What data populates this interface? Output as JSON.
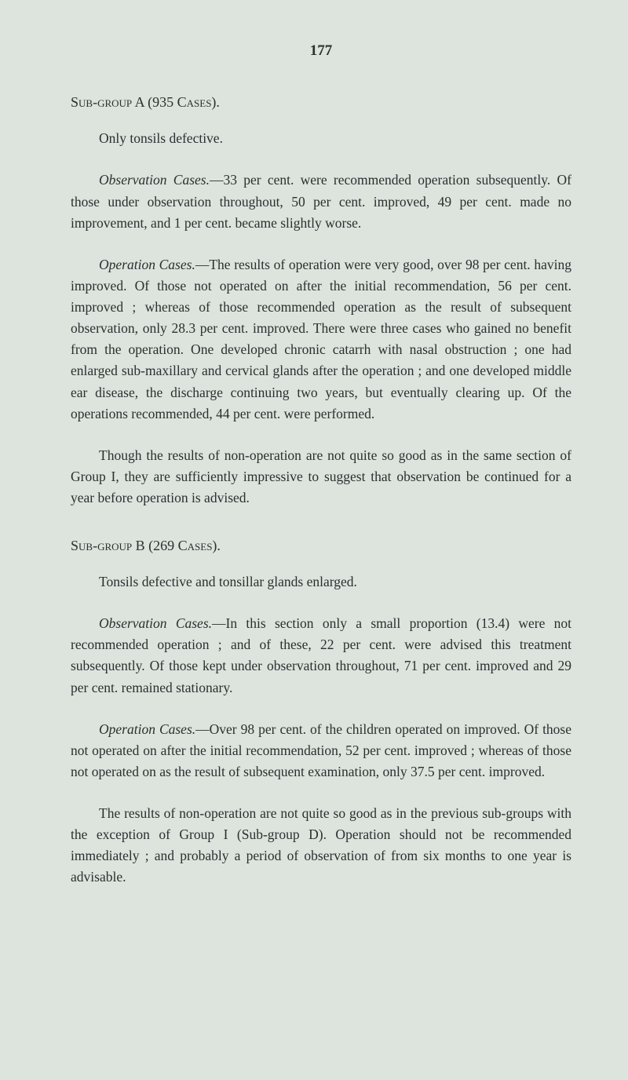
{
  "page_number": "177",
  "group_a": {
    "heading": "Sub-group A (935 Cases).",
    "sub_line": "Only tonsils defective.",
    "para1_runin": "Observation Cases.",
    "para1_rest": "—33 per cent. were recommended operation subsequently. Of those under observation throughout, 50 per cent. improved, 49 per cent. made no improvement, and 1 per cent. became slightly worse.",
    "para2_runin": "Operation Cases.",
    "para2_rest": "—The results of operation were very good, over 98 per cent. having improved. Of those not operated on after the initial recommendation, 56 per cent. improved ; whereas of those recommended operation as the result of subsequent observation, only 28.3 per cent. improved. There were three cases who gained no benefit from the operation. One developed chronic catarrh with nasal obstruction ; one had enlarged sub-maxillary and cervical glands after the operation ; and one developed middle ear disease, the discharge continuing two years, but eventually clearing up. Of the operations recommended, 44 per cent. were performed.",
    "para3": "Though the results of non-operation are not quite so good as in the same section of Group I, they are sufficiently impressive to suggest that observation be continued for a year before operation is advised."
  },
  "group_b": {
    "heading": "Sub-group B (269 Cases).",
    "sub_line": "Tonsils defective and tonsillar glands enlarged.",
    "para1_runin": "Observation Cases.",
    "para1_rest": "—In this section only a small proportion (13.4) were not recommended operation ; and of these, 22 per cent. were advised this treatment subsequently. Of those kept under observation throughout, 71 per cent. improved and 29 per cent. remained stationary.",
    "para2_runin": "Operation Cases.",
    "para2_rest": "—Over 98 per cent. of the children operated on improved. Of those not operated on after the initial recommendation, 52 per cent. improved ; whereas of those not operated on as the result of subsequent examination, only 37.5 per cent. improved.",
    "para3": "The results of non-operation are not quite so good as in the previous sub-groups with the exception of Group I (Sub-group D). Operation should not be recommended immediately ; and probably a period of observation of from six months to one year is advisable."
  }
}
